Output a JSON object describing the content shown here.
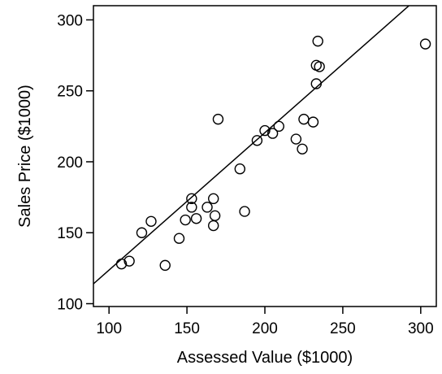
{
  "chart_data": {
    "type": "scatter",
    "title": "",
    "xlabel": "Assessed Value ($1000)",
    "ylabel": "Sales Price ($1000)",
    "xlim": [
      90,
      310
    ],
    "ylim": [
      98,
      310
    ],
    "xticks": [
      100,
      150,
      200,
      250,
      300
    ],
    "yticks": [
      100,
      150,
      200,
      250,
      300
    ],
    "grid": false,
    "legend": "none",
    "points": {
      "x": [
        108,
        113,
        121,
        127,
        136,
        145,
        149,
        153,
        153,
        156,
        163,
        167,
        167,
        168,
        170,
        184,
        187,
        195,
        200,
        205,
        209,
        220,
        224,
        225,
        231,
        233,
        233,
        234,
        235,
        303
      ],
      "y": [
        128,
        130,
        150,
        158,
        127,
        146,
        159,
        168,
        174,
        160,
        168,
        174,
        155,
        162,
        230,
        195,
        165,
        215,
        222,
        220,
        225,
        216,
        209,
        230,
        228,
        255,
        268,
        285,
        267,
        283
      ]
    },
    "fit_line": {
      "x": [
        90,
        310
      ],
      "y": [
        114,
        327
      ]
    },
    "colors": {
      "points": "#000000",
      "line": "#000000",
      "background": "#ffffff"
    }
  }
}
